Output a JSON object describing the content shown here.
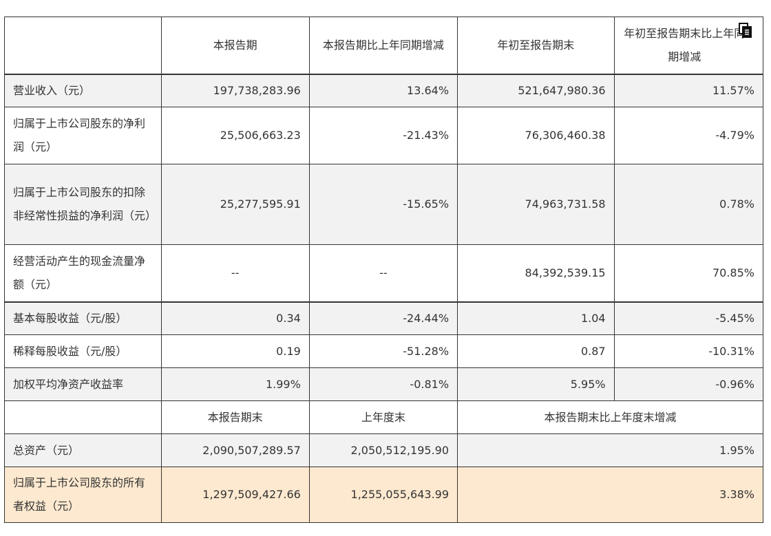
{
  "header": {
    "col0": "",
    "col1": "本报告期",
    "col2": "本报告期比上年同期增减",
    "col3": "年初至报告期末",
    "col4": "年初至报告期末比上年同期增减"
  },
  "rows": [
    {
      "label": "营业收入（元）",
      "v1": "197,738,283.96",
      "v2": "13.64%",
      "v3": "521,647,980.36",
      "v4": "11.57%"
    },
    {
      "label": "归属于上市公司股东的净利润（元）",
      "v1": "25,506,663.23",
      "v2": "-21.43%",
      "v3": "76,306,460.38",
      "v4": "-4.79%"
    },
    {
      "label": "归属于上市公司股东的扣除非经常性损益的净利润（元）",
      "v1": "25,277,595.91",
      "v2": "-15.65%",
      "v3": "74,963,731.58",
      "v4": "0.78%"
    },
    {
      "label": "经营活动产生的现金流量净额（元）",
      "v1": "--",
      "v2": "--",
      "v3": "84,392,539.15",
      "v4": "70.85%"
    },
    {
      "label": "基本每股收益（元/股）",
      "v1": "0.34",
      "v2": "-24.44%",
      "v3": "1.04",
      "v4": "-5.45%"
    },
    {
      "label": "稀释每股收益（元/股）",
      "v1": "0.19",
      "v2": "-51.28%",
      "v3": "0.87",
      "v4": "-10.31%"
    },
    {
      "label": "加权平均净资产收益率",
      "v1": "1.99%",
      "v2": "-0.81%",
      "v3": "5.95%",
      "v4": "-0.96%"
    }
  ],
  "subheader": {
    "col0": "",
    "col1": "本报告期末",
    "col2": "上年度末",
    "col3": "本报告期末比上年度末增减"
  },
  "rows2": [
    {
      "label": "总资产（元）",
      "v1": "2,090,507,289.57",
      "v2": "2,050,512,195.90",
      "v3": "1.95%"
    },
    {
      "label": "归属于上市公司股东的所有者权益（元）",
      "v1": "1,297,509,427.66",
      "v2": "1,255,055,643.99",
      "v3": "3.38%"
    }
  ],
  "icons": {
    "copy": "copy-icon"
  }
}
